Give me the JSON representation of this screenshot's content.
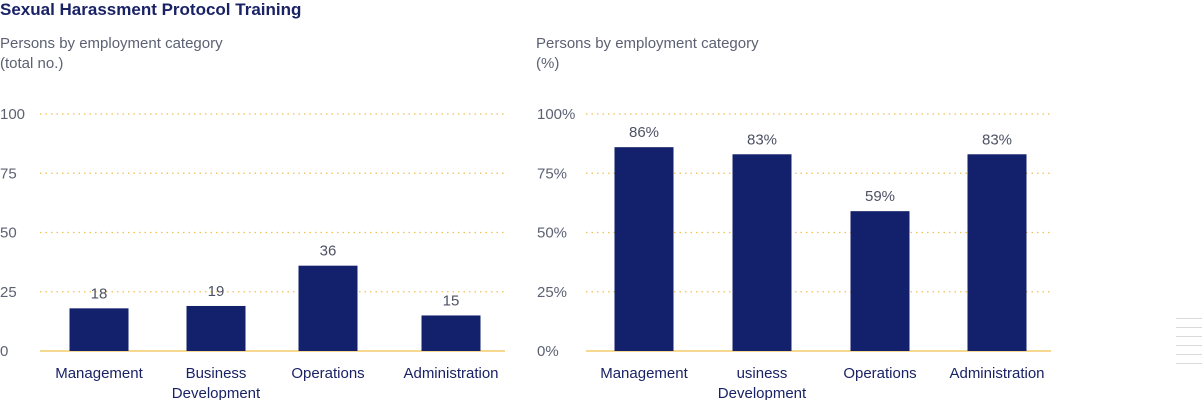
{
  "title": "Sexual Harassment Protocol Training",
  "chart_data": [
    {
      "type": "bar",
      "subtitle": [
        "Persons by employment category",
        "(total no.)"
      ],
      "categories": [
        [
          "Management"
        ],
        [
          "Business",
          "Development"
        ],
        [
          "Operations"
        ],
        [
          "Administration"
        ]
      ],
      "values": [
        18,
        19,
        36,
        15
      ],
      "value_labels": [
        "18",
        "19",
        "36",
        "15"
      ],
      "ylim": [
        0,
        100
      ],
      "yticks": [
        0,
        25,
        50,
        75,
        100
      ],
      "ytick_labels": [
        "0",
        "25",
        "50",
        "75",
        "100"
      ],
      "grid": true,
      "bar_color": "#13206b",
      "grid_color": "#f2c04f"
    },
    {
      "type": "bar",
      "subtitle": [
        "Persons by employment category",
        "(%)"
      ],
      "categories": [
        [
          "Management"
        ],
        [
          "usiness",
          "Development"
        ],
        [
          "Operations"
        ],
        [
          "Administration"
        ]
      ],
      "values": [
        86,
        83,
        59,
        83
      ],
      "value_labels": [
        "86%",
        "83%",
        "59%",
        "83%"
      ],
      "ylim": [
        0,
        100
      ],
      "yticks": [
        0,
        25,
        50,
        75,
        100
      ],
      "ytick_labels": [
        "0%",
        "25%",
        "50%",
        "75%",
        "100%"
      ],
      "grid": true,
      "bar_color": "#13206b",
      "grid_color": "#f2c04f"
    }
  ]
}
